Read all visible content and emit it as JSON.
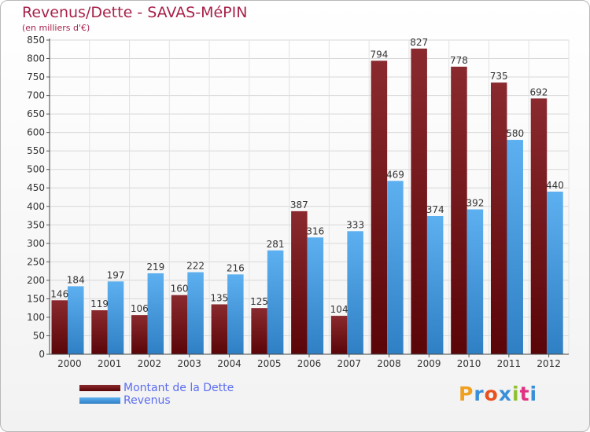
{
  "header": {
    "title": "Revenus/Dette - SAVAS-MéPIN",
    "subtitle": "(en milliers d'€)"
  },
  "legend": {
    "items": [
      {
        "label": "Montant de la Dette",
        "color": "#7a1418"
      },
      {
        "label": "Revenus",
        "color": "#4a9fe0"
      }
    ]
  },
  "logo": {
    "text": "Proxiti",
    "colors": [
      "#f0a020",
      "#3a8fd8",
      "#e85020",
      "#3a8fd8",
      "#90c030",
      "#e03080",
      "#3a8fd8"
    ]
  },
  "chart_data": {
    "type": "bar",
    "title": "Revenus/Dette - SAVAS-MéPIN",
    "subtitle": "(en milliers d'€)",
    "categories": [
      "2000",
      "2001",
      "2002",
      "2003",
      "2004",
      "2005",
      "2006",
      "2007",
      "2008",
      "2009",
      "2010",
      "2011",
      "2012"
    ],
    "series": [
      {
        "name": "Montant de la Dette",
        "color": "#7a1418",
        "values": [
          146,
          119,
          106,
          160,
          135,
          125,
          387,
          104,
          794,
          827,
          778,
          735,
          692
        ]
      },
      {
        "name": "Revenus",
        "color": "#4a9fe0",
        "values": [
          184,
          197,
          219,
          222,
          216,
          281,
          316,
          333,
          469,
          374,
          392,
          580,
          440
        ]
      }
    ],
    "ylim": [
      0,
      850
    ],
    "ytick_step": 50,
    "grid": true,
    "legend_position": "bottom-left"
  }
}
